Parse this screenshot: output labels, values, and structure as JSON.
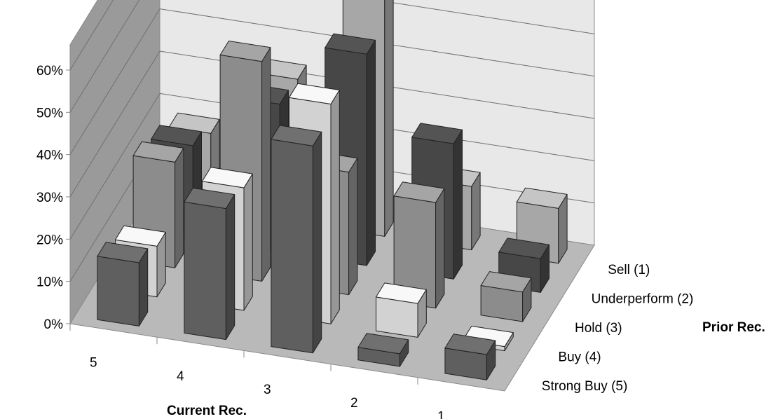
{
  "chart_data": {
    "type": "bar3d",
    "xlabel": "Current Rec.",
    "ylabel": "Prior Rec.",
    "x_categories": [
      "5",
      "4",
      "3",
      "2",
      "1"
    ],
    "y_categories": [
      "Strong Buy (5)",
      "Buy (4)",
      "Hold (3)",
      "Underperform (2)",
      "Sell (1)"
    ],
    "z_ticks": [
      "0%",
      "10%",
      "20%",
      "30%",
      "40%",
      "50%",
      "60%"
    ],
    "zlim": [
      0,
      60
    ],
    "series": [
      {
        "name": "Strong Buy (5)",
        "values": [
          15,
          31,
          49,
          3,
          6
        ]
      },
      {
        "name": "Buy (4)",
        "values": [
          12,
          29,
          52,
          8,
          1
        ]
      },
      {
        "name": "Hold (3)",
        "values": [
          25,
          52,
          29,
          25,
          7
        ]
      },
      {
        "name": "Underperform (2)",
        "values": [
          22,
          35,
          50,
          32,
          8
        ]
      },
      {
        "name": "Sell (1)",
        "values": [
          18,
          34,
          65,
          15,
          13
        ]
      }
    ],
    "colors": {
      "Strong Buy (5)": "#5f5f5f",
      "Buy (4)": "#d2d2d2",
      "Hold (3)": "#8c8c8c",
      "Underperform (2)": "#474747",
      "Sell (1)": "#a7a7a7"
    },
    "wall_colors": {
      "back": "#e8e8e8",
      "side": "#9a9a9a",
      "floor": "#b9b9b9"
    }
  }
}
